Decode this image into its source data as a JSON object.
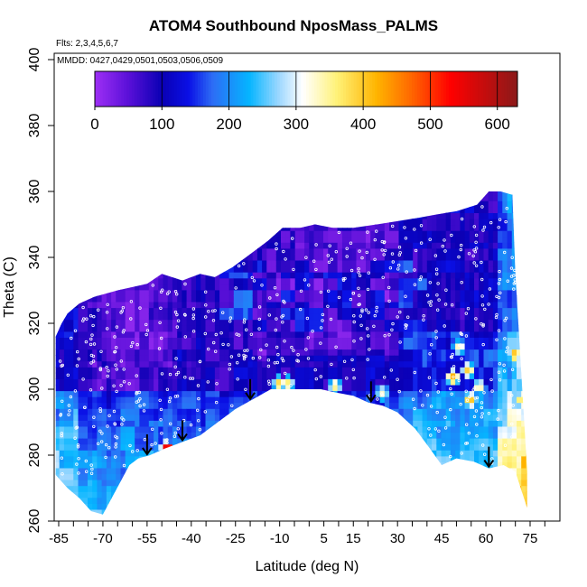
{
  "chart_data": {
    "type": "heatmap",
    "title": "ATOM4 Southbound NposMass_PALMS",
    "flights_note": "Flts: 2,3,4,5,6,7",
    "dates_note": "MMDD: 0427,0429,0501,0503,0506,0509",
    "xlabel": "Latitude (deg N)",
    "ylabel": "Theta (C)",
    "xlim": [
      -88,
      83
    ],
    "ylim": [
      260,
      404
    ],
    "x_tick_labels": [
      "-85",
      "-70",
      "-55",
      "-40",
      "-25",
      "-10",
      "5",
      "15",
      "30",
      "45",
      "60",
      "75"
    ],
    "y_tick_labels": [
      "260",
      "280",
      "300",
      "320",
      "340",
      "360",
      "380",
      "400"
    ],
    "colorbar": {
      "min": 0,
      "max": 630,
      "tick_labels": [
        "0",
        "100",
        "200",
        "300",
        "400",
        "500",
        "600"
      ],
      "stops": [
        {
          "value": 0,
          "color": "#9e2ff5"
        },
        {
          "value": 50,
          "color": "#5a10d8"
        },
        {
          "value": 100,
          "color": "#0a00b4"
        },
        {
          "value": 140,
          "color": "#0a10e6"
        },
        {
          "value": 175,
          "color": "#2d6cf5"
        },
        {
          "value": 230,
          "color": "#05b5ff"
        },
        {
          "value": 275,
          "color": "#9fd8ff"
        },
        {
          "value": 310,
          "color": "#ffffff"
        },
        {
          "value": 360,
          "color": "#fff27a"
        },
        {
          "value": 420,
          "color": "#ffb400"
        },
        {
          "value": 470,
          "color": "#ff6a00"
        },
        {
          "value": 530,
          "color": "#ff0000"
        },
        {
          "value": 630,
          "color": "#8b1a1a"
        }
      ]
    },
    "colors": {
      "point": "#ffffff",
      "arrow": "#000000",
      "frame": "#000000"
    },
    "region_top": [
      [
        -86,
        316
      ],
      [
        -84,
        320
      ],
      [
        -82,
        323
      ],
      [
        -78,
        326
      ],
      [
        -73,
        328
      ],
      [
        -65,
        330
      ],
      [
        -55,
        332
      ],
      [
        -50,
        335
      ],
      [
        -43,
        333
      ],
      [
        -37,
        335
      ],
      [
        -32,
        334
      ],
      [
        -26,
        337
      ],
      [
        -20,
        341
      ],
      [
        -14,
        345
      ],
      [
        -9,
        349
      ],
      [
        -3,
        349
      ],
      [
        2,
        350
      ],
      [
        8,
        349
      ],
      [
        15,
        349
      ],
      [
        23,
        350
      ],
      [
        30,
        351
      ],
      [
        37,
        352
      ],
      [
        43,
        353
      ],
      [
        50,
        354
      ],
      [
        57,
        356
      ],
      [
        61,
        360
      ],
      [
        65,
        360
      ],
      [
        69,
        359
      ],
      [
        70,
        335
      ],
      [
        71,
        320
      ],
      [
        72,
        305
      ],
      [
        73,
        290
      ],
      [
        74,
        275
      ],
      [
        74,
        264
      ]
    ],
    "region_bottom": [
      [
        74,
        264
      ],
      [
        70,
        275
      ],
      [
        66,
        277
      ],
      [
        61,
        276
      ],
      [
        56,
        278
      ],
      [
        50,
        279
      ],
      [
        45,
        277
      ],
      [
        41,
        282
      ],
      [
        36,
        288
      ],
      [
        30,
        293
      ],
      [
        25,
        295
      ],
      [
        20,
        296
      ],
      [
        15,
        298
      ],
      [
        9,
        299
      ],
      [
        4,
        300
      ],
      [
        -2,
        300
      ],
      [
        -7,
        300
      ],
      [
        -13,
        300
      ],
      [
        -19,
        297
      ],
      [
        -25,
        294
      ],
      [
        -31,
        290
      ],
      [
        -37,
        286
      ],
      [
        -43,
        284
      ],
      [
        -49,
        282
      ],
      [
        -54,
        280
      ],
      [
        -58,
        279
      ],
      [
        -61,
        277
      ],
      [
        -64,
        272
      ],
      [
        -67,
        267
      ],
      [
        -70,
        262
      ],
      [
        -74,
        263
      ],
      [
        -78,
        267
      ],
      [
        -82,
        270
      ],
      [
        -86,
        274
      ]
    ],
    "arrows_latitude": [
      -55,
      -43,
      -20,
      21,
      61
    ],
    "hotspots": [
      {
        "lat": 53,
        "theta": 305,
        "value": 390
      },
      {
        "lat": 57,
        "theta": 300,
        "value": 330
      },
      {
        "lat": 48,
        "theta": 303,
        "value": 420
      },
      {
        "lat": 50,
        "theta": 312,
        "value": 330
      },
      {
        "lat": 54,
        "theta": 296,
        "value": 400
      },
      {
        "lat": 69,
        "theta": 310,
        "value": 400
      },
      {
        "lat": 71,
        "theta": 296,
        "value": 360
      },
      {
        "lat": 72,
        "theta": 285,
        "value": 320
      },
      {
        "lat": 72,
        "theta": 277,
        "value": 420
      },
      {
        "lat": -49,
        "theta": 281,
        "value": 540
      },
      {
        "lat": -11,
        "theta": 301,
        "value": 380
      },
      {
        "lat": -8,
        "theta": 301,
        "value": 360
      },
      {
        "lat": 8,
        "theta": 300,
        "value": 350
      },
      {
        "lat": 24,
        "theta": 298,
        "value": 330
      }
    ]
  }
}
